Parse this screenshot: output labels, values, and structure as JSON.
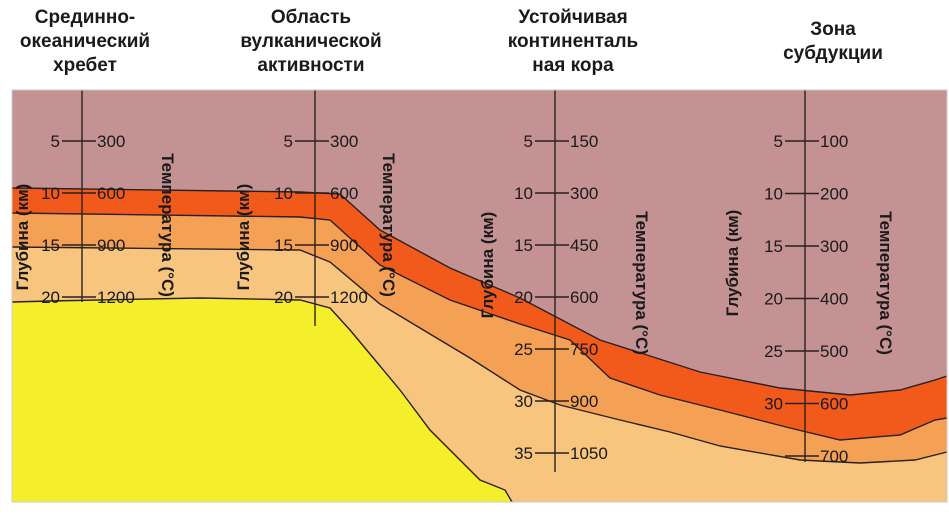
{
  "headings": [
    {
      "lines": [
        "Срединно-",
        "океанический",
        "хребет"
      ]
    },
    {
      "lines": [
        "Область",
        "вулканической",
        "активности"
      ]
    },
    {
      "lines": [
        "Устойчивая",
        "континенталь",
        "ная кора"
      ]
    },
    {
      "lines": [
        "Зона",
        "субдукции"
      ]
    }
  ],
  "axes": [
    {
      "depth_label": "Глубина (км)",
      "temp_label": "Температура (°С)",
      "depth": [
        "5",
        "10",
        "15",
        "20"
      ],
      "temp": [
        "300",
        "600",
        "900",
        "1200"
      ]
    },
    {
      "depth_label": "Глубина (км)",
      "temp_label": "Температура (°С)",
      "depth": [
        "5",
        "10",
        "15",
        "20"
      ],
      "temp": [
        "300",
        "600",
        "900",
        "1200"
      ]
    },
    {
      "depth_label": "Глубина (км)",
      "temp_label": "Температура (°С)",
      "depth": [
        "5",
        "10",
        "15",
        "20",
        "25",
        "30",
        "35"
      ],
      "temp": [
        "150",
        "300",
        "450",
        "600",
        "750",
        "900",
        "1050"
      ]
    },
    {
      "depth_label": "Глубина (км)",
      "temp_label": "Температура (°С)",
      "depth": [
        "5",
        "10",
        "15",
        "20",
        "25",
        "30"
      ],
      "temp": [
        "100",
        "200",
        "300",
        "400",
        "500",
        "600",
        "700"
      ]
    }
  ],
  "colors": {
    "crust": "#c59294",
    "zone_600": "#f25a1c",
    "zone_900": "#f4a156",
    "zone_1200": "#f7c57d",
    "zone_hot": "#f5ef2b"
  }
}
